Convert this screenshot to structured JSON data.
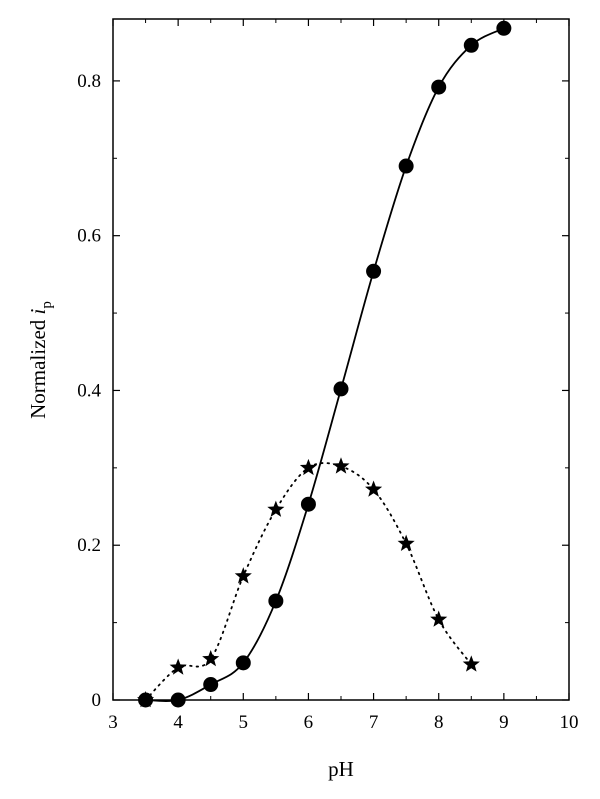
{
  "chart_data": {
    "type": "scatter",
    "title": "",
    "xlabel": "pH",
    "ylabel_main": "Normalized ",
    "ylabel_italic": "i",
    "ylabel_sub": "p",
    "xlim": [
      3,
      10
    ],
    "ylim": [
      0,
      0.88
    ],
    "x_ticks": [
      3,
      4,
      5,
      6,
      7,
      8,
      9,
      10
    ],
    "x_tick_labels": [
      "3",
      "4",
      "5",
      "6",
      "7",
      "8",
      "9",
      "10"
    ],
    "y_ticks": [
      0,
      0.2,
      0.4,
      0.6,
      0.8
    ],
    "y_tick_labels": [
      "0",
      "0.2",
      "0.4",
      "0.6",
      "0.8"
    ],
    "grid": false,
    "legend": "none",
    "series": [
      {
        "marker": "circle",
        "line": "solid",
        "color": "#000000",
        "x": [
          3.5,
          4,
          4.5,
          5,
          5.5,
          6,
          6.5,
          7,
          7.5,
          8,
          8.5,
          9
        ],
        "y": [
          0.0,
          0.0,
          0.02,
          0.048,
          0.128,
          0.253,
          0.402,
          0.554,
          0.69,
          0.792,
          0.846,
          0.868
        ]
      },
      {
        "marker": "star",
        "line": "dotted",
        "color": "#000000",
        "x": [
          3.5,
          4,
          4.5,
          5,
          5.5,
          6,
          6.5,
          7,
          7.5,
          8,
          8.5
        ],
        "y": [
          0.0,
          0.042,
          0.053,
          0.16,
          0.246,
          0.3,
          0.302,
          0.272,
          0.202,
          0.104,
          0.046
        ]
      }
    ]
  }
}
